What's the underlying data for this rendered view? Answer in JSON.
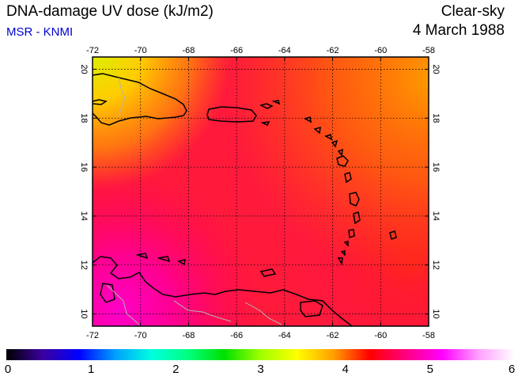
{
  "header": {
    "title": "DNA-damage UV dose (kJ/m2)",
    "source": "MSR - KNMI",
    "condition": "Clear-sky",
    "date": "4 March 1988"
  },
  "map": {
    "lon_range": [
      -72,
      -58
    ],
    "lat_range": [
      9.5,
      20.5
    ],
    "lon_ticks": [
      "-72",
      "-70",
      "-68",
      "-66",
      "-64",
      "-62",
      "-60",
      "-58"
    ],
    "lat_ticks": [
      "20",
      "18",
      "16",
      "14",
      "12",
      "10"
    ],
    "gridlines": "dotted",
    "regions": [
      "Hispaniola",
      "Puerto Rico",
      "Lesser Antilles",
      "Venezuela coast"
    ]
  },
  "colorbar": {
    "labels": [
      "0",
      "1",
      "2",
      "3",
      "4",
      "5",
      "6"
    ],
    "min": 0,
    "max": 6,
    "colors": [
      "#000000",
      "#3c00a0",
      "#0000ff",
      "#00a0ff",
      "#00ffe0",
      "#00ff80",
      "#00e000",
      "#a0ff00",
      "#ffff00",
      "#ffa000",
      "#ff0000",
      "#ff0080",
      "#ff00ff",
      "#ffa0ff",
      "#ffffff"
    ]
  }
}
